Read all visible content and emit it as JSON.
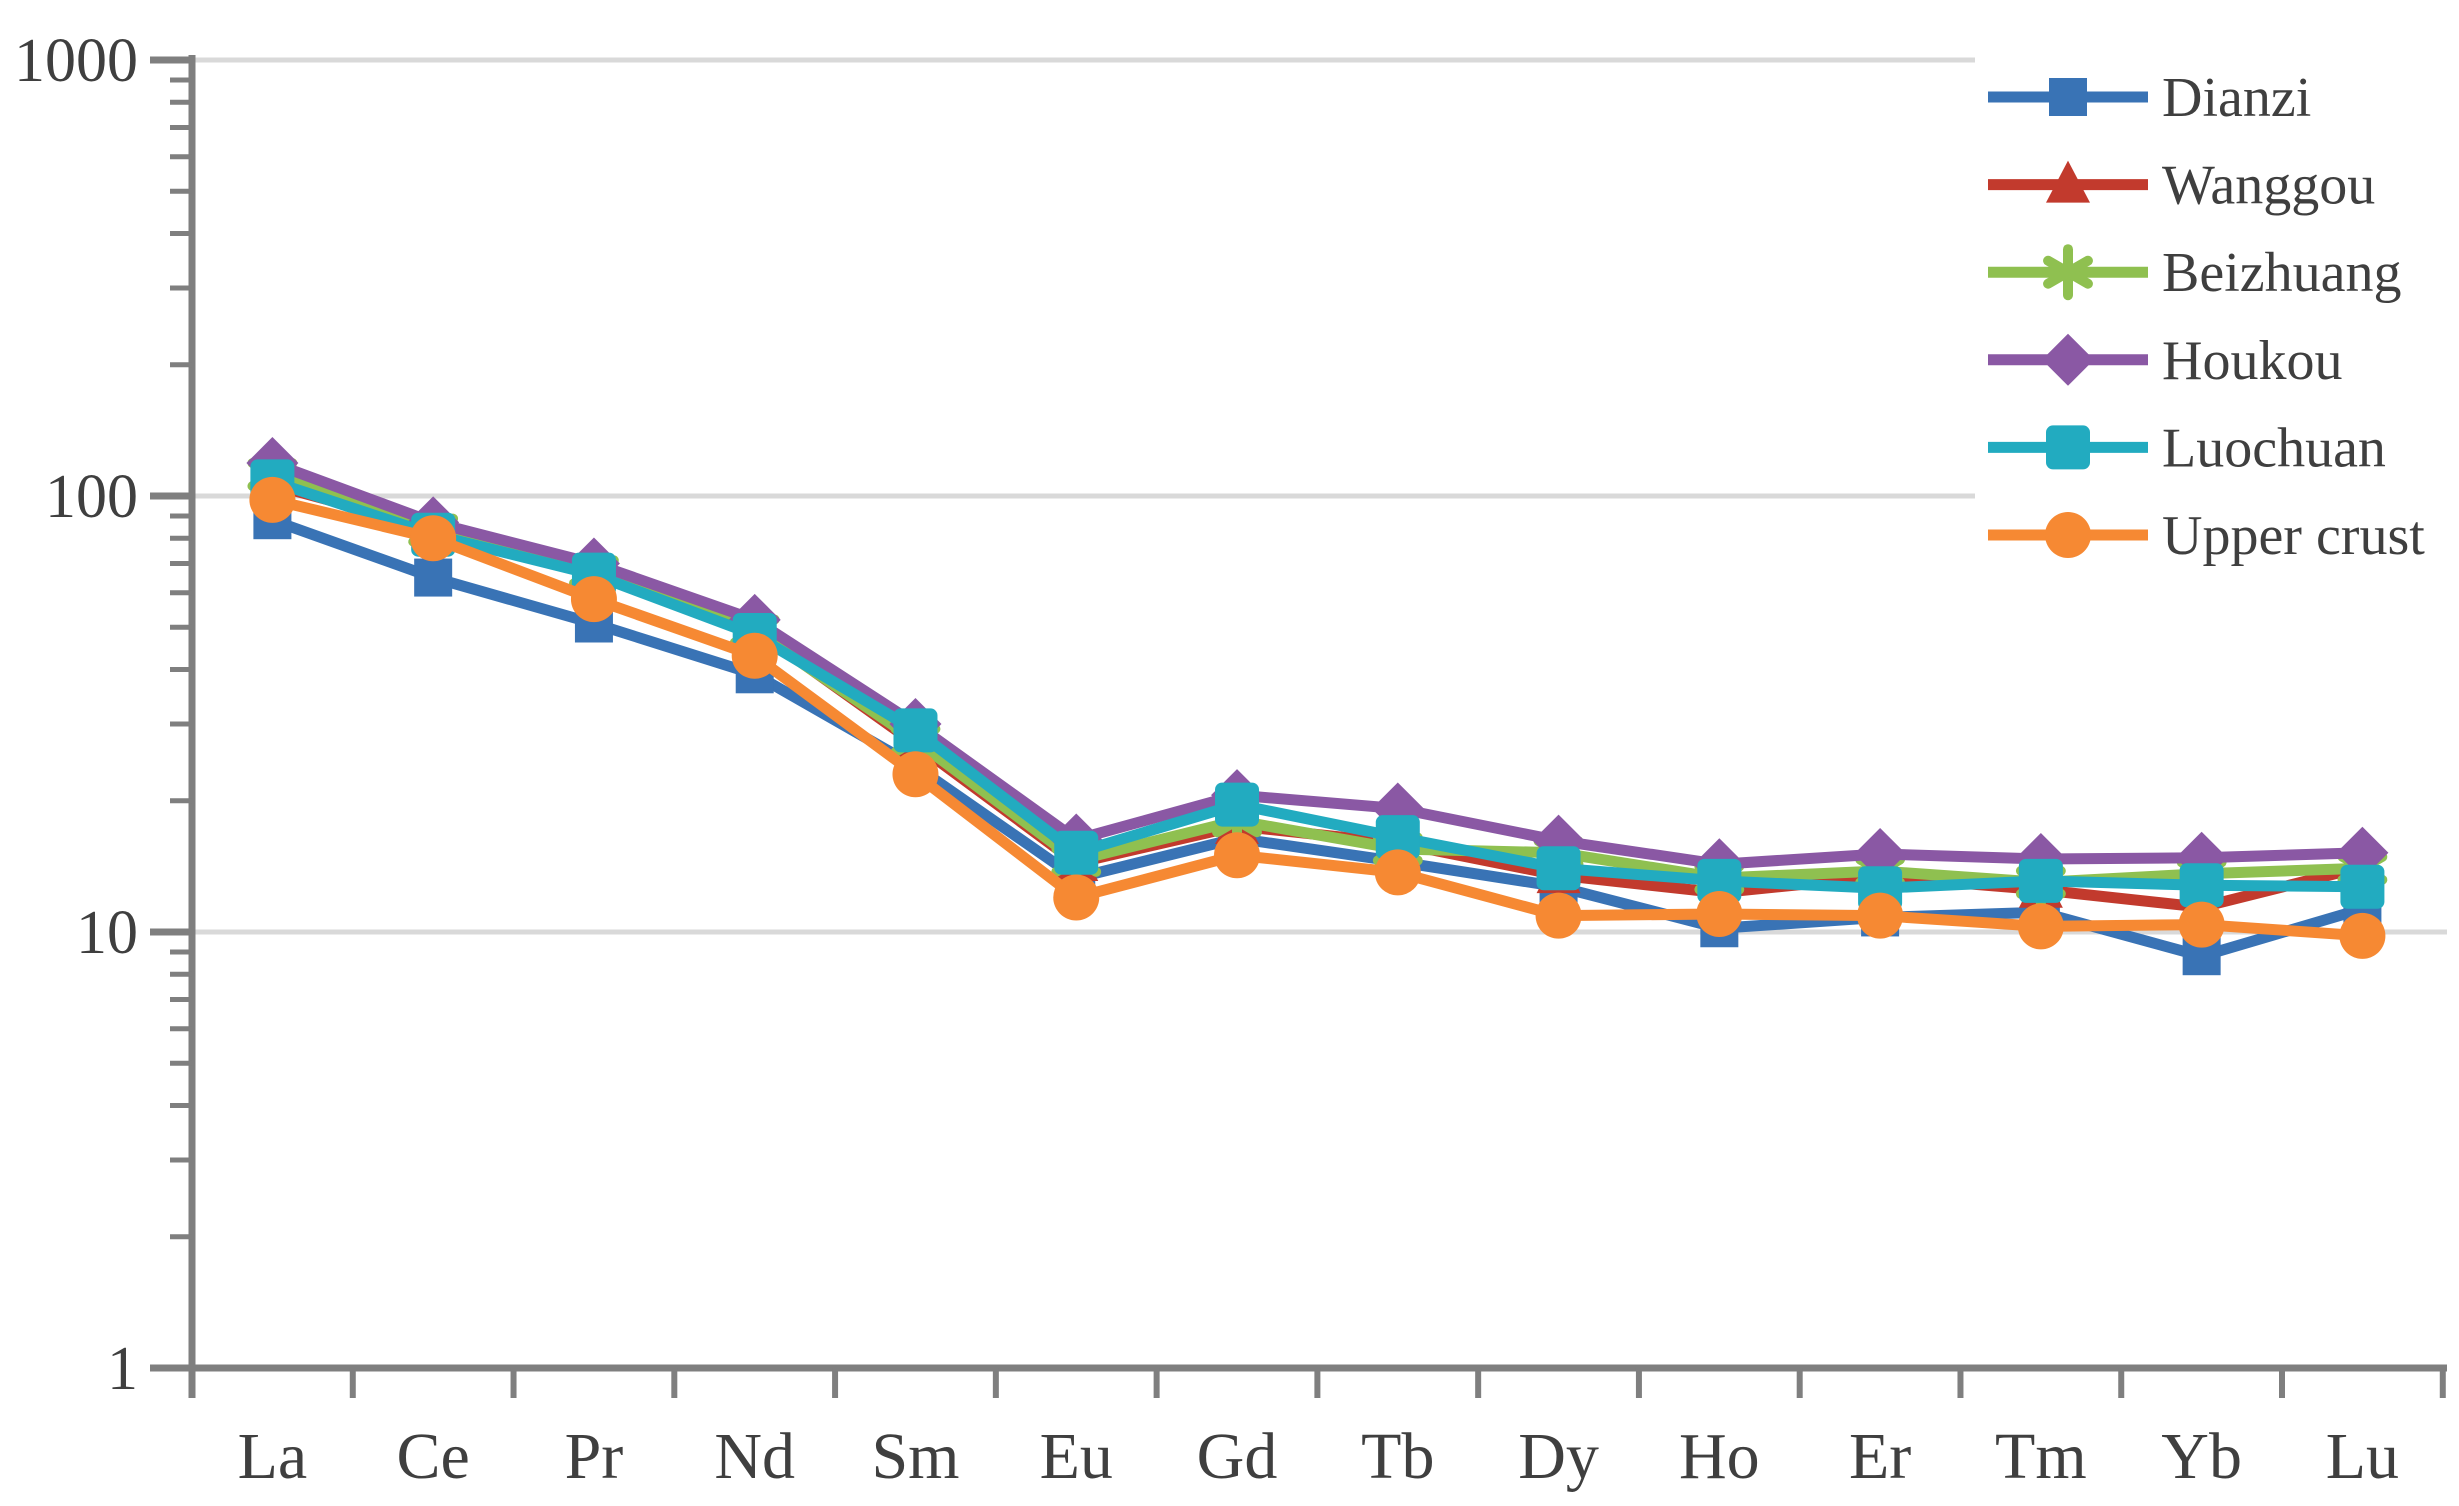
{
  "chart_data": {
    "type": "line",
    "x_axis": {
      "categories": [
        "La",
        "Ce",
        "Pr",
        "Nd",
        "Sm",
        "Eu",
        "Gd",
        "Tb",
        "Dy",
        "Ho",
        "Er",
        "Tm",
        "Yb",
        "Lu"
      ]
    },
    "y_axis": {
      "scale": "log",
      "min": 1,
      "max": 1000,
      "tick_labels": [
        "1000",
        "100",
        "10",
        "1"
      ],
      "tick_values": [
        1000,
        100,
        10,
        1
      ],
      "gridline_values": [
        1000,
        100,
        10
      ],
      "grid": "horizontal-major"
    },
    "legend": {
      "position": "top-right"
    },
    "series": [
      {
        "name": "Dianzi",
        "color": "#3973B5",
        "marker": "square",
        "values": [
          88,
          65,
          51,
          39,
          24,
          13.3,
          16.4,
          14.5,
          12.7,
          10.2,
          10.8,
          11.1,
          8.8,
          11.3
        ]
      },
      {
        "name": "Wanggou",
        "color": "#C23A2D",
        "marker": "triangle",
        "values": [
          106,
          84.5,
          68,
          49.5,
          27,
          14.4,
          17.5,
          16,
          13.5,
          12.3,
          13.4,
          12.5,
          11.4,
          14.1
        ]
      },
      {
        "name": "Beizhuang",
        "color": "#8FC050",
        "marker": "asterisk",
        "values": [
          112,
          83.5,
          67,
          49,
          27.5,
          14.6,
          18,
          15.5,
          15.2,
          13.3,
          13.8,
          13,
          13.6,
          14
        ]
      },
      {
        "name": "Houkou",
        "color": "#8A58A4",
        "marker": "diamond",
        "values": [
          119,
          87,
          70,
          52,
          30,
          16.3,
          20.6,
          19.2,
          16.2,
          14.3,
          15.1,
          14.7,
          14.8,
          15.2
        ]
      },
      {
        "name": "Luochuan",
        "color": "#22ABC0",
        "marker": "rounded-square",
        "values": [
          108,
          81.5,
          66,
          48,
          29,
          15.2,
          19.6,
          16.5,
          14,
          13.1,
          12.6,
          13.1,
          12.8,
          12.7
        ]
      },
      {
        "name": "Upper crust",
        "color": "#F68933",
        "marker": "circle",
        "values": [
          98,
          80,
          58,
          43,
          23,
          12,
          15,
          13.7,
          10.9,
          11,
          10.9,
          10.3,
          10.4,
          9.8
        ]
      }
    ]
  },
  "styles": {
    "grid_color": "#D9D9D9",
    "axis_color": "#7F7F7F",
    "text_color": "#3F3F3F",
    "background": "#FFFFFF"
  }
}
